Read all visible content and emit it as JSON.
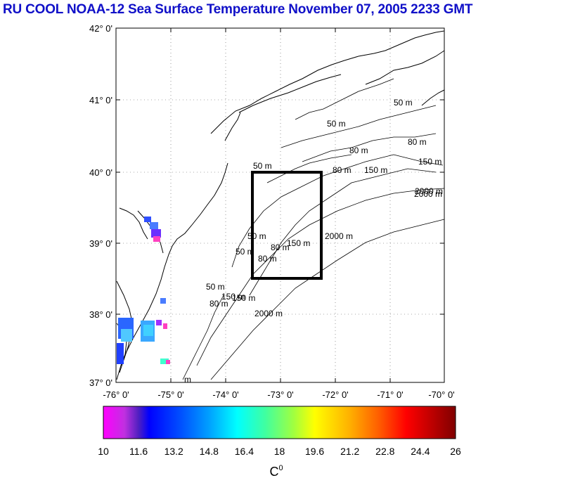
{
  "title": "RU COOL  NOAA-12 Sea Surface Temperature November 07, 2005 2233 GMT",
  "map": {
    "lat_labels": [
      "42° 0'",
      "41° 0'",
      "40° 0'",
      "39° 0'",
      "38° 0'",
      "37° 0'"
    ],
    "lon_labels": [
      "-76° 0'",
      "-75° 0'",
      "-74° 0'",
      "-73° 0'",
      "-72° 0'",
      "-71° 0'",
      "-70° 0'"
    ],
    "lat_range": [
      37,
      42
    ],
    "lon_range": [
      -76,
      -70
    ],
    "study_box": {
      "lon_min": -73.5,
      "lon_max": -72.2,
      "lat_min": 38.5,
      "lat_max": 40.0
    },
    "contour_labels": [
      "50 m",
      "80 m",
      "50 m",
      "80 m",
      "150 m",
      "2000 m",
      "50 m",
      "80 m",
      "150 m",
      "50 m",
      "80 m",
      "150 m",
      "2000 m",
      "50 m",
      "80 m",
      "150 m",
      "2000 m",
      "50 m",
      "80 m",
      "150 m",
      "2000 m",
      "m"
    ]
  },
  "colorbar": {
    "tick_labels": [
      "10",
      "11.6",
      "13.2",
      "14.8",
      "16.4",
      "18",
      "19.6",
      "21.2",
      "22.8",
      "24.4",
      "26"
    ],
    "unit_label": "C",
    "unit_superscript": "0",
    "range": [
      10,
      26
    ]
  },
  "colors": {
    "title": "#1010c8",
    "land_coast": "#000000",
    "box": "#000000"
  }
}
